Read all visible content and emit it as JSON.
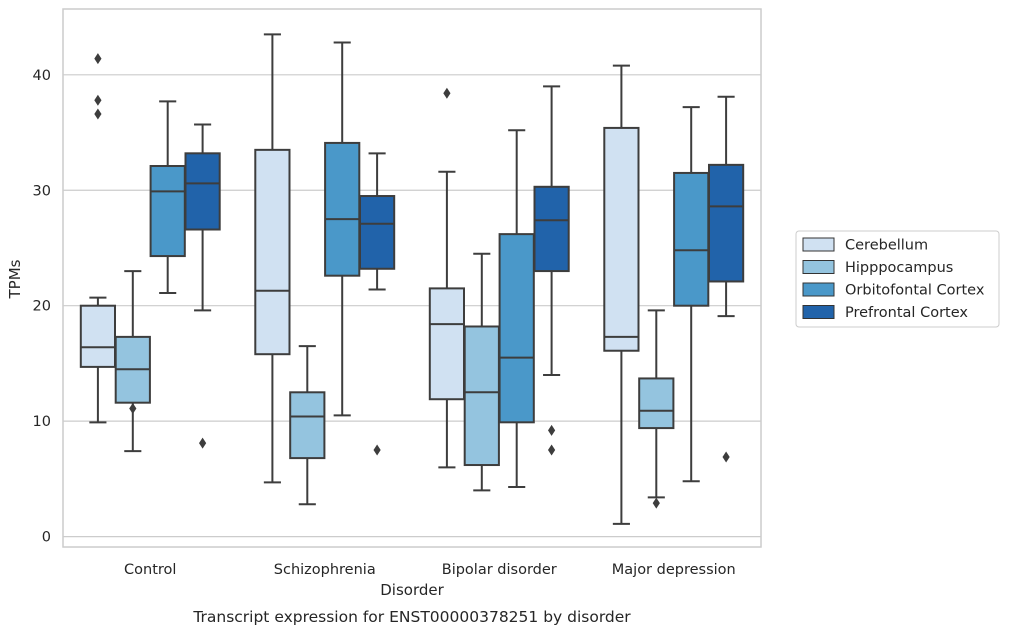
{
  "chart_data": {
    "type": "box",
    "title": "",
    "caption": "Transcript expression for ENST00000378251 by disorder",
    "xlabel": "Disorder",
    "ylabel": "TPMs",
    "ylim": [
      -0.9,
      45.7
    ],
    "yticks": [
      0,
      10,
      20,
      30,
      40
    ],
    "grid": "horizontal",
    "legend_position": "right",
    "categories": [
      "Control",
      "Schizophrenia",
      "Bipolar disorder",
      "Major depression"
    ],
    "series": [
      {
        "name": "Cerebellum",
        "color": "#d0e1f2",
        "boxes": [
          {
            "whisker_low": 9.9,
            "q1": 14.7,
            "median": 16.4,
            "q3": 20.0,
            "whisker_high": 20.7,
            "outliers": [
              36.6,
              37.8,
              41.4
            ]
          },
          {
            "whisker_low": 4.7,
            "q1": 15.8,
            "median": 21.3,
            "q3": 33.5,
            "whisker_high": 43.5,
            "outliers": []
          },
          {
            "whisker_low": 6.0,
            "q1": 11.9,
            "median": 18.4,
            "q3": 21.5,
            "whisker_high": 31.6,
            "outliers": [
              38.4
            ]
          },
          {
            "whisker_low": 1.1,
            "q1": 16.1,
            "median": 17.3,
            "q3": 35.4,
            "whisker_high": 40.8,
            "outliers": []
          }
        ]
      },
      {
        "name": "Hipppocampus",
        "color": "#94c4df",
        "boxes": [
          {
            "whisker_low": 7.4,
            "q1": 11.6,
            "median": 14.5,
            "q3": 17.3,
            "whisker_high": 23.0,
            "outliers": [
              11.1
            ]
          },
          {
            "whisker_low": 2.8,
            "q1": 6.8,
            "median": 10.4,
            "q3": 12.5,
            "whisker_high": 16.5,
            "outliers": []
          },
          {
            "whisker_low": 4.0,
            "q1": 6.2,
            "median": 12.5,
            "q3": 18.2,
            "whisker_high": 24.5,
            "outliers": []
          },
          {
            "whisker_low": 3.4,
            "q1": 9.4,
            "median": 10.9,
            "q3": 13.7,
            "whisker_high": 19.6,
            "outliers": [
              2.9
            ]
          }
        ]
      },
      {
        "name": "Orbitofontal Cortex",
        "color": "#4a98c9",
        "boxes": [
          {
            "whisker_low": 21.1,
            "q1": 24.3,
            "median": 29.9,
            "q3": 32.1,
            "whisker_high": 37.7,
            "outliers": []
          },
          {
            "whisker_low": 10.5,
            "q1": 22.6,
            "median": 27.5,
            "q3": 34.1,
            "whisker_high": 42.8,
            "outliers": []
          },
          {
            "whisker_low": 4.3,
            "q1": 9.9,
            "median": 15.5,
            "q3": 26.2,
            "whisker_high": 35.2,
            "outliers": []
          },
          {
            "whisker_low": 4.8,
            "q1": 20.0,
            "median": 24.8,
            "q3": 31.5,
            "whisker_high": 37.2,
            "outliers": []
          }
        ]
      },
      {
        "name": "Prefrontal Cortex",
        "color": "#2163aa",
        "boxes": [
          {
            "whisker_low": 19.6,
            "q1": 26.6,
            "median": 30.6,
            "q3": 33.2,
            "whisker_high": 35.7,
            "outliers": [
              8.1
            ]
          },
          {
            "whisker_low": 21.4,
            "q1": 23.2,
            "median": 27.1,
            "q3": 29.5,
            "whisker_high": 33.2,
            "outliers": [
              7.5
            ]
          },
          {
            "whisker_low": 14.0,
            "q1": 23.0,
            "median": 27.4,
            "q3": 30.3,
            "whisker_high": 39.0,
            "outliers": [
              7.5,
              9.2
            ]
          },
          {
            "whisker_low": 19.1,
            "q1": 22.1,
            "median": 28.6,
            "q3": 32.2,
            "whisker_high": 38.1,
            "outliers": [
              6.9
            ]
          }
        ]
      }
    ],
    "colors": {
      "box_edge": "#3d3d3d",
      "grid": "#cccccc",
      "frame": "#cccccc",
      "text": "#262626"
    }
  }
}
